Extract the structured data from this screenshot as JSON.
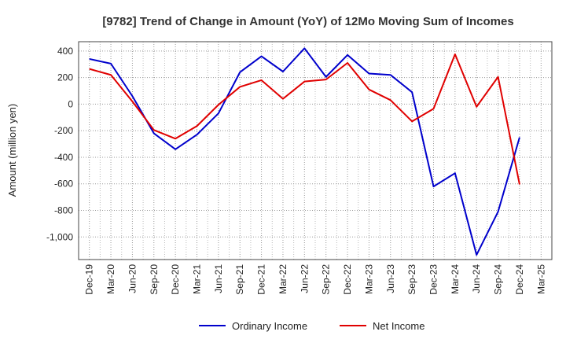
{
  "chart_data": {
    "type": "line",
    "title": "[9782]  Trend of Change in Amount (YoY) of 12Mo Moving Sum of Incomes",
    "ylabel": "Amount (million yen)",
    "xlabel": "",
    "ylim": [
      -1170,
      470
    ],
    "yticks": [
      400,
      200,
      0,
      -200,
      -400,
      -600,
      -800,
      -1000
    ],
    "ytick_labels": [
      "400",
      "200",
      "0",
      "-200",
      "-400",
      "-600",
      "-800",
      "-1,000"
    ],
    "categories": [
      "Dec-19",
      "Mar-20",
      "Jun-20",
      "Sep-20",
      "Dec-20",
      "Mar-21",
      "Jun-21",
      "Sep-21",
      "Dec-21",
      "Mar-22",
      "Jun-22",
      "Sep-22",
      "Dec-22",
      "Mar-23",
      "Jun-23",
      "Sep-23",
      "Dec-23",
      "Mar-24",
      "Jun-24",
      "Sep-24",
      "Dec-24",
      "Mar-25"
    ],
    "grid": true,
    "legend_position": "bottom-center",
    "series": [
      {
        "name": "Ordinary Income",
        "color": "#0000cc",
        "values": [
          340,
          305,
          60,
          -220,
          -340,
          -230,
          -70,
          240,
          360,
          245,
          420,
          205,
          370,
          230,
          220,
          90,
          -620,
          -520,
          -1135,
          -810,
          -250,
          null
        ]
      },
      {
        "name": "Net Income",
        "color": "#e00000",
        "values": [
          265,
          220,
          20,
          -195,
          -260,
          -165,
          -5,
          130,
          180,
          40,
          170,
          185,
          310,
          110,
          30,
          -130,
          -35,
          375,
          -20,
          205,
          -605,
          null
        ]
      }
    ]
  }
}
